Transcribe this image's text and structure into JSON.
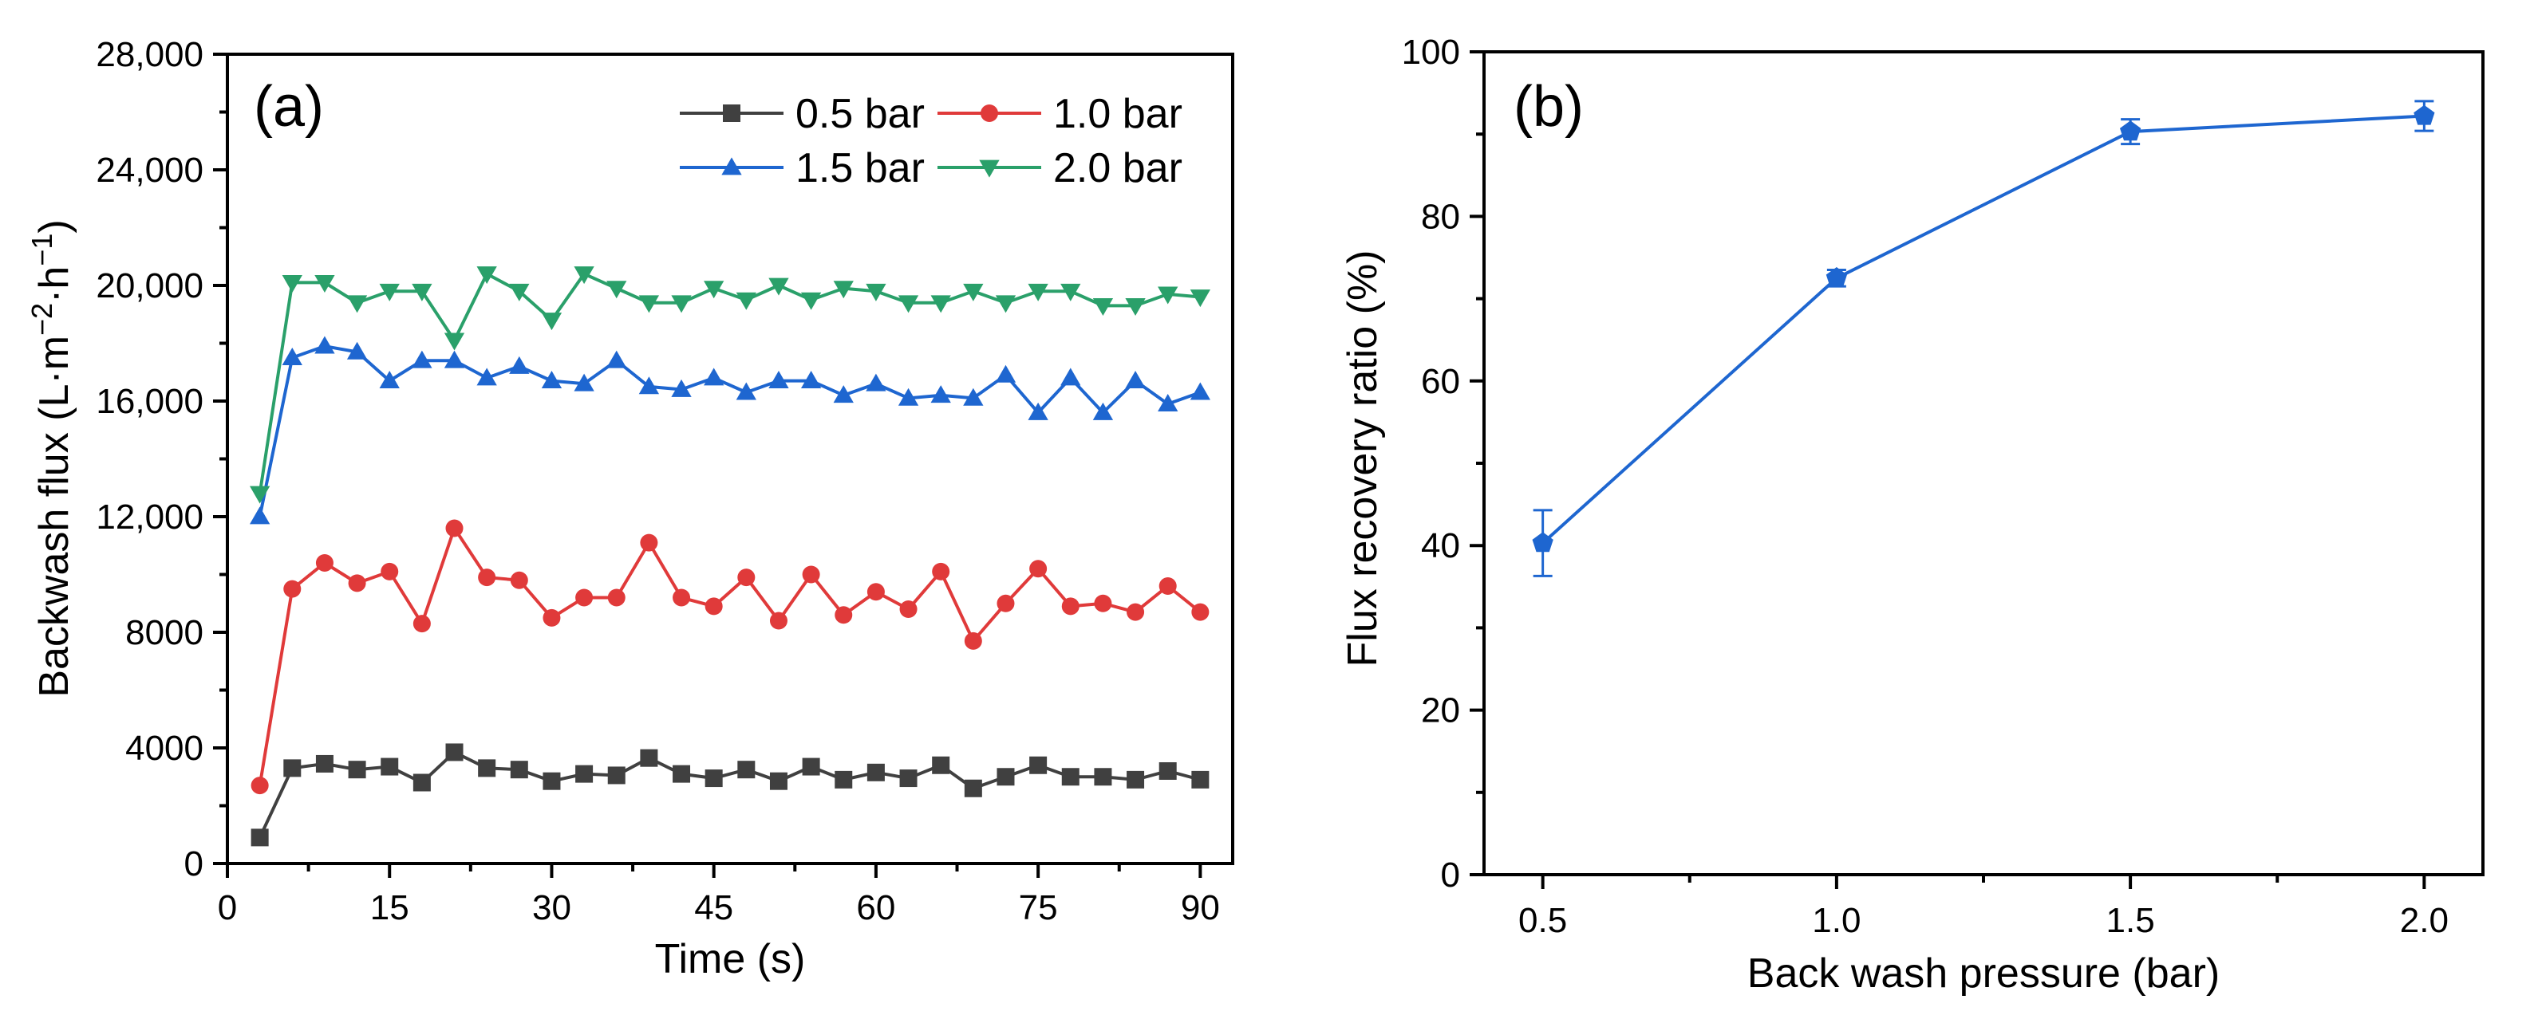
{
  "chart_data": [
    {
      "type": "line",
      "panel_label": "(a)",
      "xlabel": "Time (s)",
      "ylabel": "Backwash flux (L·m",
      "ylabel_sup1": "−2",
      "ylabel_mid": "·h",
      "ylabel_sup2": "−1",
      "ylabel_end": ")",
      "xlim": [
        0,
        93
      ],
      "ylim": [
        0,
        28000
      ],
      "xticks": [
        0,
        15,
        30,
        45,
        60,
        75,
        90
      ],
      "xtick_labels": [
        "0",
        "15",
        "30",
        "45",
        "60",
        "75",
        "90"
      ],
      "yticks": [
        0,
        4000,
        8000,
        12000,
        16000,
        20000,
        24000,
        28000
      ],
      "ytick_labels": [
        "0",
        "4000",
        "8000",
        "12,000",
        "16,000",
        "20,000",
        "24,000",
        "28,000"
      ],
      "x": [
        3,
        6,
        9,
        12,
        15,
        18,
        21,
        24,
        27,
        30,
        33,
        36,
        39,
        42,
        45,
        48,
        51,
        54,
        57,
        60,
        63,
        66,
        69,
        72,
        75,
        78,
        81,
        84,
        87,
        90
      ],
      "series": [
        {
          "name": "0.5 bar",
          "color": "#404040",
          "marker": "square",
          "values": [
            900,
            3300,
            3450,
            3250,
            3350,
            2800,
            3850,
            3300,
            3250,
            2850,
            3100,
            3050,
            3650,
            3100,
            2950,
            3250,
            2850,
            3350,
            2900,
            3150,
            2950,
            3400,
            2600,
            3000,
            3400,
            3000,
            3000,
            2900,
            3200,
            2900
          ]
        },
        {
          "name": "1.0 bar",
          "color": "#e03a3a",
          "marker": "circle",
          "values": [
            2700,
            9500,
            10400,
            9700,
            10100,
            8300,
            11600,
            9900,
            9800,
            8500,
            9200,
            9200,
            11100,
            9200,
            8900,
            9900,
            8400,
            10000,
            8600,
            9400,
            8800,
            10100,
            7700,
            9000,
            10200,
            8900,
            9000,
            8700,
            9600,
            8700
          ]
        },
        {
          "name": "1.5 bar",
          "color": "#1e66d0",
          "marker": "triangle-up",
          "values": [
            12000,
            17500,
            17900,
            17700,
            16700,
            17400,
            17400,
            16800,
            17200,
            16700,
            16600,
            17400,
            16500,
            16400,
            16800,
            16300,
            16700,
            16700,
            16200,
            16600,
            16100,
            16200,
            16100,
            16900,
            15600,
            16800,
            15600,
            16700,
            15900,
            16300
          ]
        },
        {
          "name": "2.0 bar",
          "color": "#2aa06a",
          "marker": "triangle-down",
          "values": [
            12800,
            20100,
            20100,
            19400,
            19800,
            19800,
            18100,
            20400,
            19800,
            18800,
            20400,
            19900,
            19400,
            19400,
            19900,
            19500,
            20000,
            19500,
            19900,
            19800,
            19400,
            19400,
            19800,
            19400,
            19800,
            19800,
            19300,
            19300,
            19700,
            19600
          ]
        }
      ],
      "legend": "top-right, 2 columns"
    },
    {
      "type": "line",
      "panel_label": "(b)",
      "xlabel": "Back wash pressure (bar)",
      "ylabel": "Flux recovery ratio (%)",
      "xlim": [
        0.4,
        2.1
      ],
      "ylim": [
        0,
        100
      ],
      "xticks": [
        0.5,
        1.0,
        1.5,
        2.0
      ],
      "xtick_labels": [
        "0.5",
        "1.0",
        "1.5",
        "2.0"
      ],
      "yticks": [
        0,
        20,
        40,
        60,
        80,
        100
      ],
      "ytick_labels": [
        "0",
        "20",
        "40",
        "60",
        "80",
        "100"
      ],
      "x": [
        0.5,
        1.0,
        1.5,
        2.0
      ],
      "series": [
        {
          "name": "Flux recovery ratio",
          "color": "#1e66d0",
          "marker": "pentagon",
          "values": [
            40.3,
            72.5,
            90.3,
            92.2
          ],
          "errors": [
            4.0,
            1.0,
            1.5,
            1.8
          ]
        }
      ]
    }
  ]
}
